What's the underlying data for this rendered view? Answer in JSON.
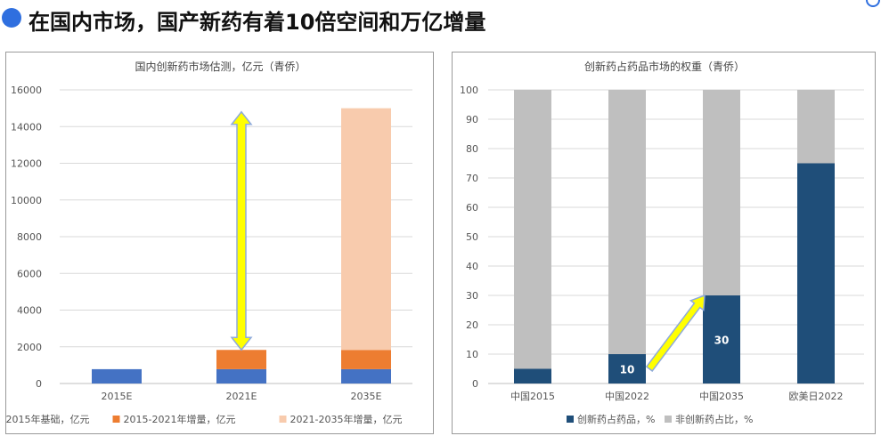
{
  "page": {
    "title": "在国内市场，国产新药有着10倍空间和万亿增量"
  },
  "colors": {
    "accent": "#2f6fdf"
  },
  "chart_data": [
    {
      "type": "bar",
      "stacked": true,
      "title": "国内创新药市场估测，亿元（青侨）",
      "categories": [
        "2015E",
        "2021E",
        "2035E"
      ],
      "series": [
        {
          "name": "2015年基础，亿元",
          "color": "#4472c4",
          "values": [
            780,
            780,
            780
          ]
        },
        {
          "name": "2015-2021年增量，亿元",
          "color": "#ed7d31",
          "values": [
            0,
            1050,
            1050
          ]
        },
        {
          "name": "2021-2035年增量，亿元",
          "color": "#f8cbad",
          "values": [
            0,
            0,
            13170
          ]
        }
      ],
      "ylim": [
        0,
        16000
      ],
      "yticks": [
        0,
        2000,
        4000,
        6000,
        8000,
        10000,
        12000,
        14000,
        16000
      ],
      "grid": true,
      "legend": "bottom",
      "annotation": {
        "type": "double-arrow",
        "category": "2021E",
        "from": 1830,
        "to": 14800,
        "color": "#ffff00"
      }
    },
    {
      "type": "bar",
      "stacked": true,
      "title": "创新药占药品市场的权重（青侨）",
      "categories": [
        "中国2015",
        "中国2022",
        "中国2035",
        "欧美日2022"
      ],
      "series": [
        {
          "name": "创新药占药品，%",
          "color": "#1f4e79",
          "values": [
            5,
            10,
            30,
            75
          ]
        },
        {
          "name": "非创新药占比，%",
          "color": "#bfbfbf",
          "values": [
            95,
            90,
            70,
            25
          ]
        }
      ],
      "data_labels": [
        "",
        "10",
        "30",
        ""
      ],
      "ylim": [
        0,
        100
      ],
      "yticks": [
        0,
        10,
        20,
        30,
        40,
        50,
        60,
        70,
        80,
        90,
        100
      ],
      "grid": true,
      "legend": "bottom",
      "annotation": {
        "type": "arrow",
        "from_category": "中国2022",
        "to_category": "中国2035",
        "color": "#ffff00"
      }
    }
  ]
}
